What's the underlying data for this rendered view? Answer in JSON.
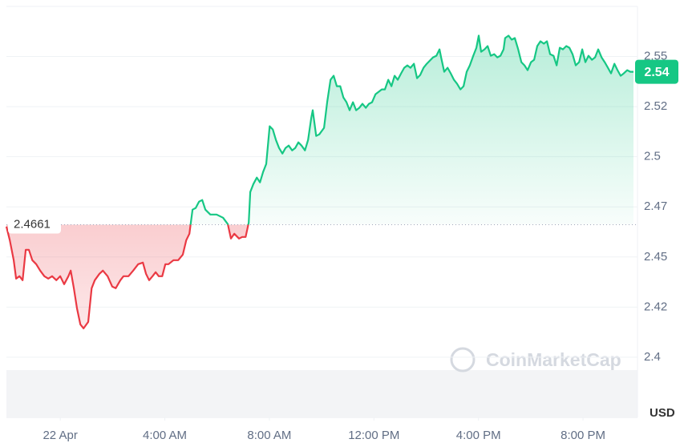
{
  "chart_data": {
    "type": "line",
    "series": [
      {
        "color": "#16c784",
        "below_color": "#ea3943",
        "x": [
          -2.06,
          -1.93,
          -1.78,
          -1.69,
          -1.56,
          -1.44,
          -1.32,
          -1.2,
          -1.07,
          -0.92,
          -0.77,
          -0.61,
          -0.46,
          -0.31,
          -0.15,
          0,
          0.15,
          0.31,
          0.4,
          0.52,
          0.64,
          0.77,
          0.89,
          1.07,
          1.2,
          1.32,
          1.5,
          1.63,
          1.81,
          1.99,
          2.12,
          2.3,
          2.42,
          2.61,
          2.79,
          2.98,
          3.16,
          3.28,
          3.4,
          3.53,
          3.65,
          3.77,
          3.9,
          4.02,
          4.14,
          4.33,
          4.51,
          4.69,
          4.82,
          4.94,
          5.06,
          5.18,
          5.31,
          5.43,
          5.55,
          5.74,
          5.98,
          6.23,
          6.41,
          6.53,
          6.66,
          6.84,
          6.96,
          7.09,
          7.21,
          7.27,
          7.39,
          7.52,
          7.64,
          7.76,
          7.88,
          8.01,
          8.13,
          8.25,
          8.37,
          8.5,
          8.62,
          8.74,
          8.87,
          8.99,
          9.11,
          9.23,
          9.36,
          9.48,
          9.6,
          9.66,
          9.79,
          9.91,
          10.09,
          10.21,
          10.34,
          10.46,
          10.58,
          10.71,
          10.83,
          10.95,
          11.07,
          11.2,
          11.32,
          11.44,
          11.56,
          11.69,
          11.81,
          11.93,
          12.06,
          12.18,
          12.3,
          12.42,
          12.55,
          12.67,
          12.79,
          12.91,
          13.04,
          13.16,
          13.28,
          13.4,
          13.53,
          13.65,
          13.77,
          13.9,
          14.02,
          14.14,
          14.26,
          14.39,
          14.51,
          14.57,
          14.69,
          14.82,
          14.94,
          15.06,
          15.18,
          15.31,
          15.43,
          15.55,
          15.67,
          15.8,
          15.92,
          16.01,
          16.1,
          16.23,
          16.35,
          16.47,
          16.6,
          16.72,
          16.84,
          16.96,
          17.02,
          17.15,
          17.27,
          17.39,
          17.52,
          17.64,
          17.76,
          17.88,
          18.01,
          18.13,
          18.25,
          18.37,
          18.5,
          18.62,
          18.74,
          18.87,
          18.99,
          19.11,
          19.23,
          19.36,
          19.48,
          19.6,
          19.72,
          19.85,
          19.97,
          20.09,
          20.21,
          20.34,
          20.46,
          20.58,
          20.71,
          20.83,
          20.95,
          21.07,
          21.2,
          21.32,
          21.44,
          21.56,
          21.69,
          21.81,
          21.93
        ],
        "values": [
          2.4652,
          2.4584,
          2.4484,
          2.4392,
          2.4404,
          2.4384,
          2.4536,
          2.4536,
          2.4484,
          2.4464,
          2.4432,
          2.4404,
          2.4392,
          2.4404,
          2.4384,
          2.4404,
          2.4364,
          2.4404,
          2.4432,
          2.4344,
          2.4244,
          2.4164,
          2.4144,
          2.4176,
          2.4344,
          2.4384,
          2.4416,
          2.4432,
          2.4404,
          2.4352,
          2.4344,
          2.4384,
          2.4404,
          2.4404,
          2.4432,
          2.4464,
          2.4472,
          2.4416,
          2.4384,
          2.4404,
          2.4424,
          2.4404,
          2.4404,
          2.4464,
          2.4464,
          2.4484,
          2.4484,
          2.4512,
          2.4584,
          2.4616,
          2.4736,
          2.4744,
          2.4776,
          2.4784,
          2.4736,
          2.4712,
          2.4712,
          2.4696,
          2.4664,
          2.4592,
          2.4616,
          2.4592,
          2.46,
          2.46,
          2.4672,
          2.4824,
          2.4864,
          2.4896,
          2.4872,
          2.4924,
          2.4964,
          2.5152,
          2.5136,
          2.5084,
          2.5044,
          2.5016,
          2.5044,
          2.5056,
          2.5032,
          2.5044,
          2.5072,
          2.5056,
          2.5032,
          2.5084,
          2.5192,
          2.5232,
          2.5104,
          2.5112,
          2.5144,
          2.5272,
          2.5384,
          2.5404,
          2.5352,
          2.5352,
          2.5296,
          2.5272,
          2.5232,
          2.5272,
          2.5232,
          2.5244,
          2.5264,
          2.5244,
          2.5264,
          2.5272,
          2.5312,
          2.5324,
          2.5336,
          2.5336,
          2.5384,
          2.5352,
          2.5404,
          2.5384,
          2.5416,
          2.5444,
          2.5456,
          2.5444,
          2.5464,
          2.5392,
          2.5408,
          2.5444,
          2.5464,
          2.548,
          2.5496,
          2.5504,
          2.5536,
          2.5496,
          2.5424,
          2.5444,
          2.5416,
          2.5384,
          2.5364,
          2.5336,
          2.5352,
          2.5424,
          2.5456,
          2.5504,
          2.5544,
          2.5604,
          2.5524,
          2.5536,
          2.5552,
          2.5504,
          2.5512,
          2.5496,
          2.5504,
          2.5536,
          2.5592,
          2.5604,
          2.5584,
          2.5592,
          2.5536,
          2.5472,
          2.5456,
          2.5432,
          2.5472,
          2.5484,
          2.5552,
          2.5576,
          2.5564,
          2.5576,
          2.5512,
          2.5504,
          2.5456,
          2.5544,
          2.5536,
          2.5552,
          2.5544,
          2.5512,
          2.5456,
          2.5472,
          2.5536,
          2.5472,
          2.5504,
          2.5484,
          2.5496,
          2.5536,
          2.5496,
          2.5472,
          2.5444,
          2.5416,
          2.5464,
          2.5432,
          2.5404,
          2.5416,
          2.5432,
          2.5424,
          2.5424
        ],
        "last_value_label": "2.54"
      }
    ],
    "baseline": 2.4661,
    "xlim": [
      -2.06,
      21.93
    ],
    "xticks": [
      {
        "value": 0,
        "label": "22 Apr"
      },
      {
        "value": 4,
        "label": "4:00 AM"
      },
      {
        "value": 8,
        "label": "8:00 AM"
      },
      {
        "value": 12,
        "label": "12:00 PM"
      },
      {
        "value": 16,
        "label": "4:00 PM"
      },
      {
        "value": 20,
        "label": "8:00 PM"
      }
    ],
    "ylim": [
      2.37,
      2.575
    ],
    "yticks": [
      2.4,
      {
        "value": 2.425,
        "label": "2.42"
      },
      2.45,
      {
        "value": 2.475,
        "label": "2.47"
      },
      2.5,
      {
        "value": 2.525,
        "label": "2.52"
      },
      2.55
    ],
    "y_unit": "USD",
    "watermark": "CoinMarketCap",
    "grid": true
  }
}
